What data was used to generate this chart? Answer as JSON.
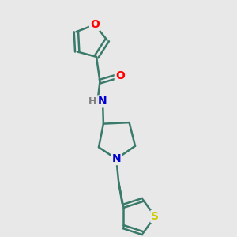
{
  "background_color": "#e8e8e8",
  "bond_color": "#3a7a6a",
  "bond_width": 1.8,
  "atom_colors": {
    "O": "#ff0000",
    "N": "#0000cc",
    "S": "#cccc00",
    "H": "#808080"
  },
  "font_size": 10,
  "figsize": [
    3.0,
    3.0
  ],
  "dpi": 100
}
